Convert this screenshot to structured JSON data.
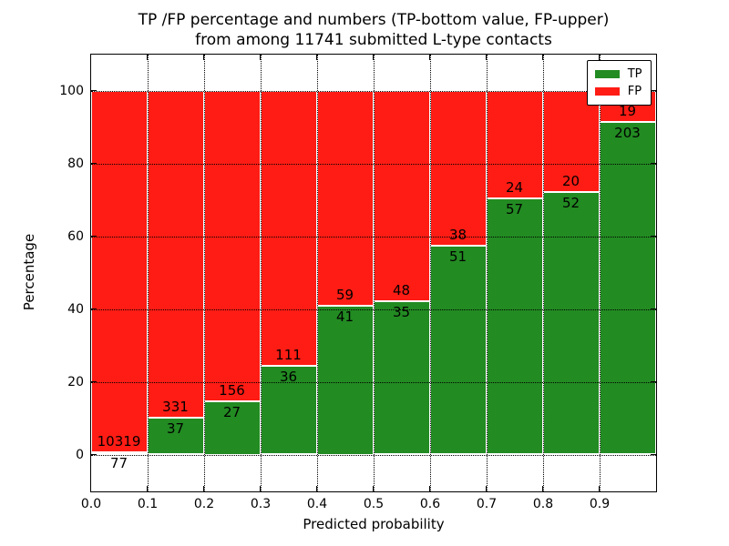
{
  "figure": {
    "title_line1": "TP /FP percentage and numbers (TP-bottom value, FP-upper)",
    "title_line2": "from among 11741 submitted L-type contacts",
    "xlabel": "Predicted probability",
    "ylabel": "Percentage"
  },
  "legend": {
    "position": "upper right",
    "items": [
      {
        "label": "TP",
        "color": "#228B22"
      },
      {
        "label": "FP",
        "color": "#FF1C14"
      }
    ]
  },
  "chart_data": {
    "type": "bar",
    "stacked": true,
    "title": "TP /FP percentage and numbers (TP-bottom value, FP-upper) from among 11741 submitted L-type contacts",
    "xlabel": "Predicted probability",
    "ylabel": "Percentage",
    "total_contacts": 11741,
    "xlim": [
      0.0,
      1.0
    ],
    "ylim": [
      -10,
      110
    ],
    "x_tick_labels": [
      "0.0",
      "0.1",
      "0.2",
      "0.3",
      "0.4",
      "0.5",
      "0.6",
      "0.7",
      "0.8",
      "0.9"
    ],
    "y_ticks": [
      0,
      20,
      40,
      60,
      80,
      100
    ],
    "grid": true,
    "bin_width": 0.1,
    "bin_starts": [
      0.0,
      0.1,
      0.2,
      0.3,
      0.4,
      0.5,
      0.6,
      0.7,
      0.8,
      0.9
    ],
    "series": [
      {
        "name": "TP",
        "color": "#228B22",
        "values": [
          77,
          37,
          27,
          36,
          41,
          35,
          51,
          57,
          52,
          203
        ]
      },
      {
        "name": "FP",
        "color": "#FF1C14",
        "values": [
          10319,
          331,
          156,
          111,
          59,
          48,
          38,
          24,
          20,
          19
        ]
      }
    ],
    "tp_percent": [
      0.74,
      10.05,
      14.75,
      24.49,
      41.0,
      42.17,
      57.3,
      70.37,
      72.22,
      91.44
    ]
  }
}
